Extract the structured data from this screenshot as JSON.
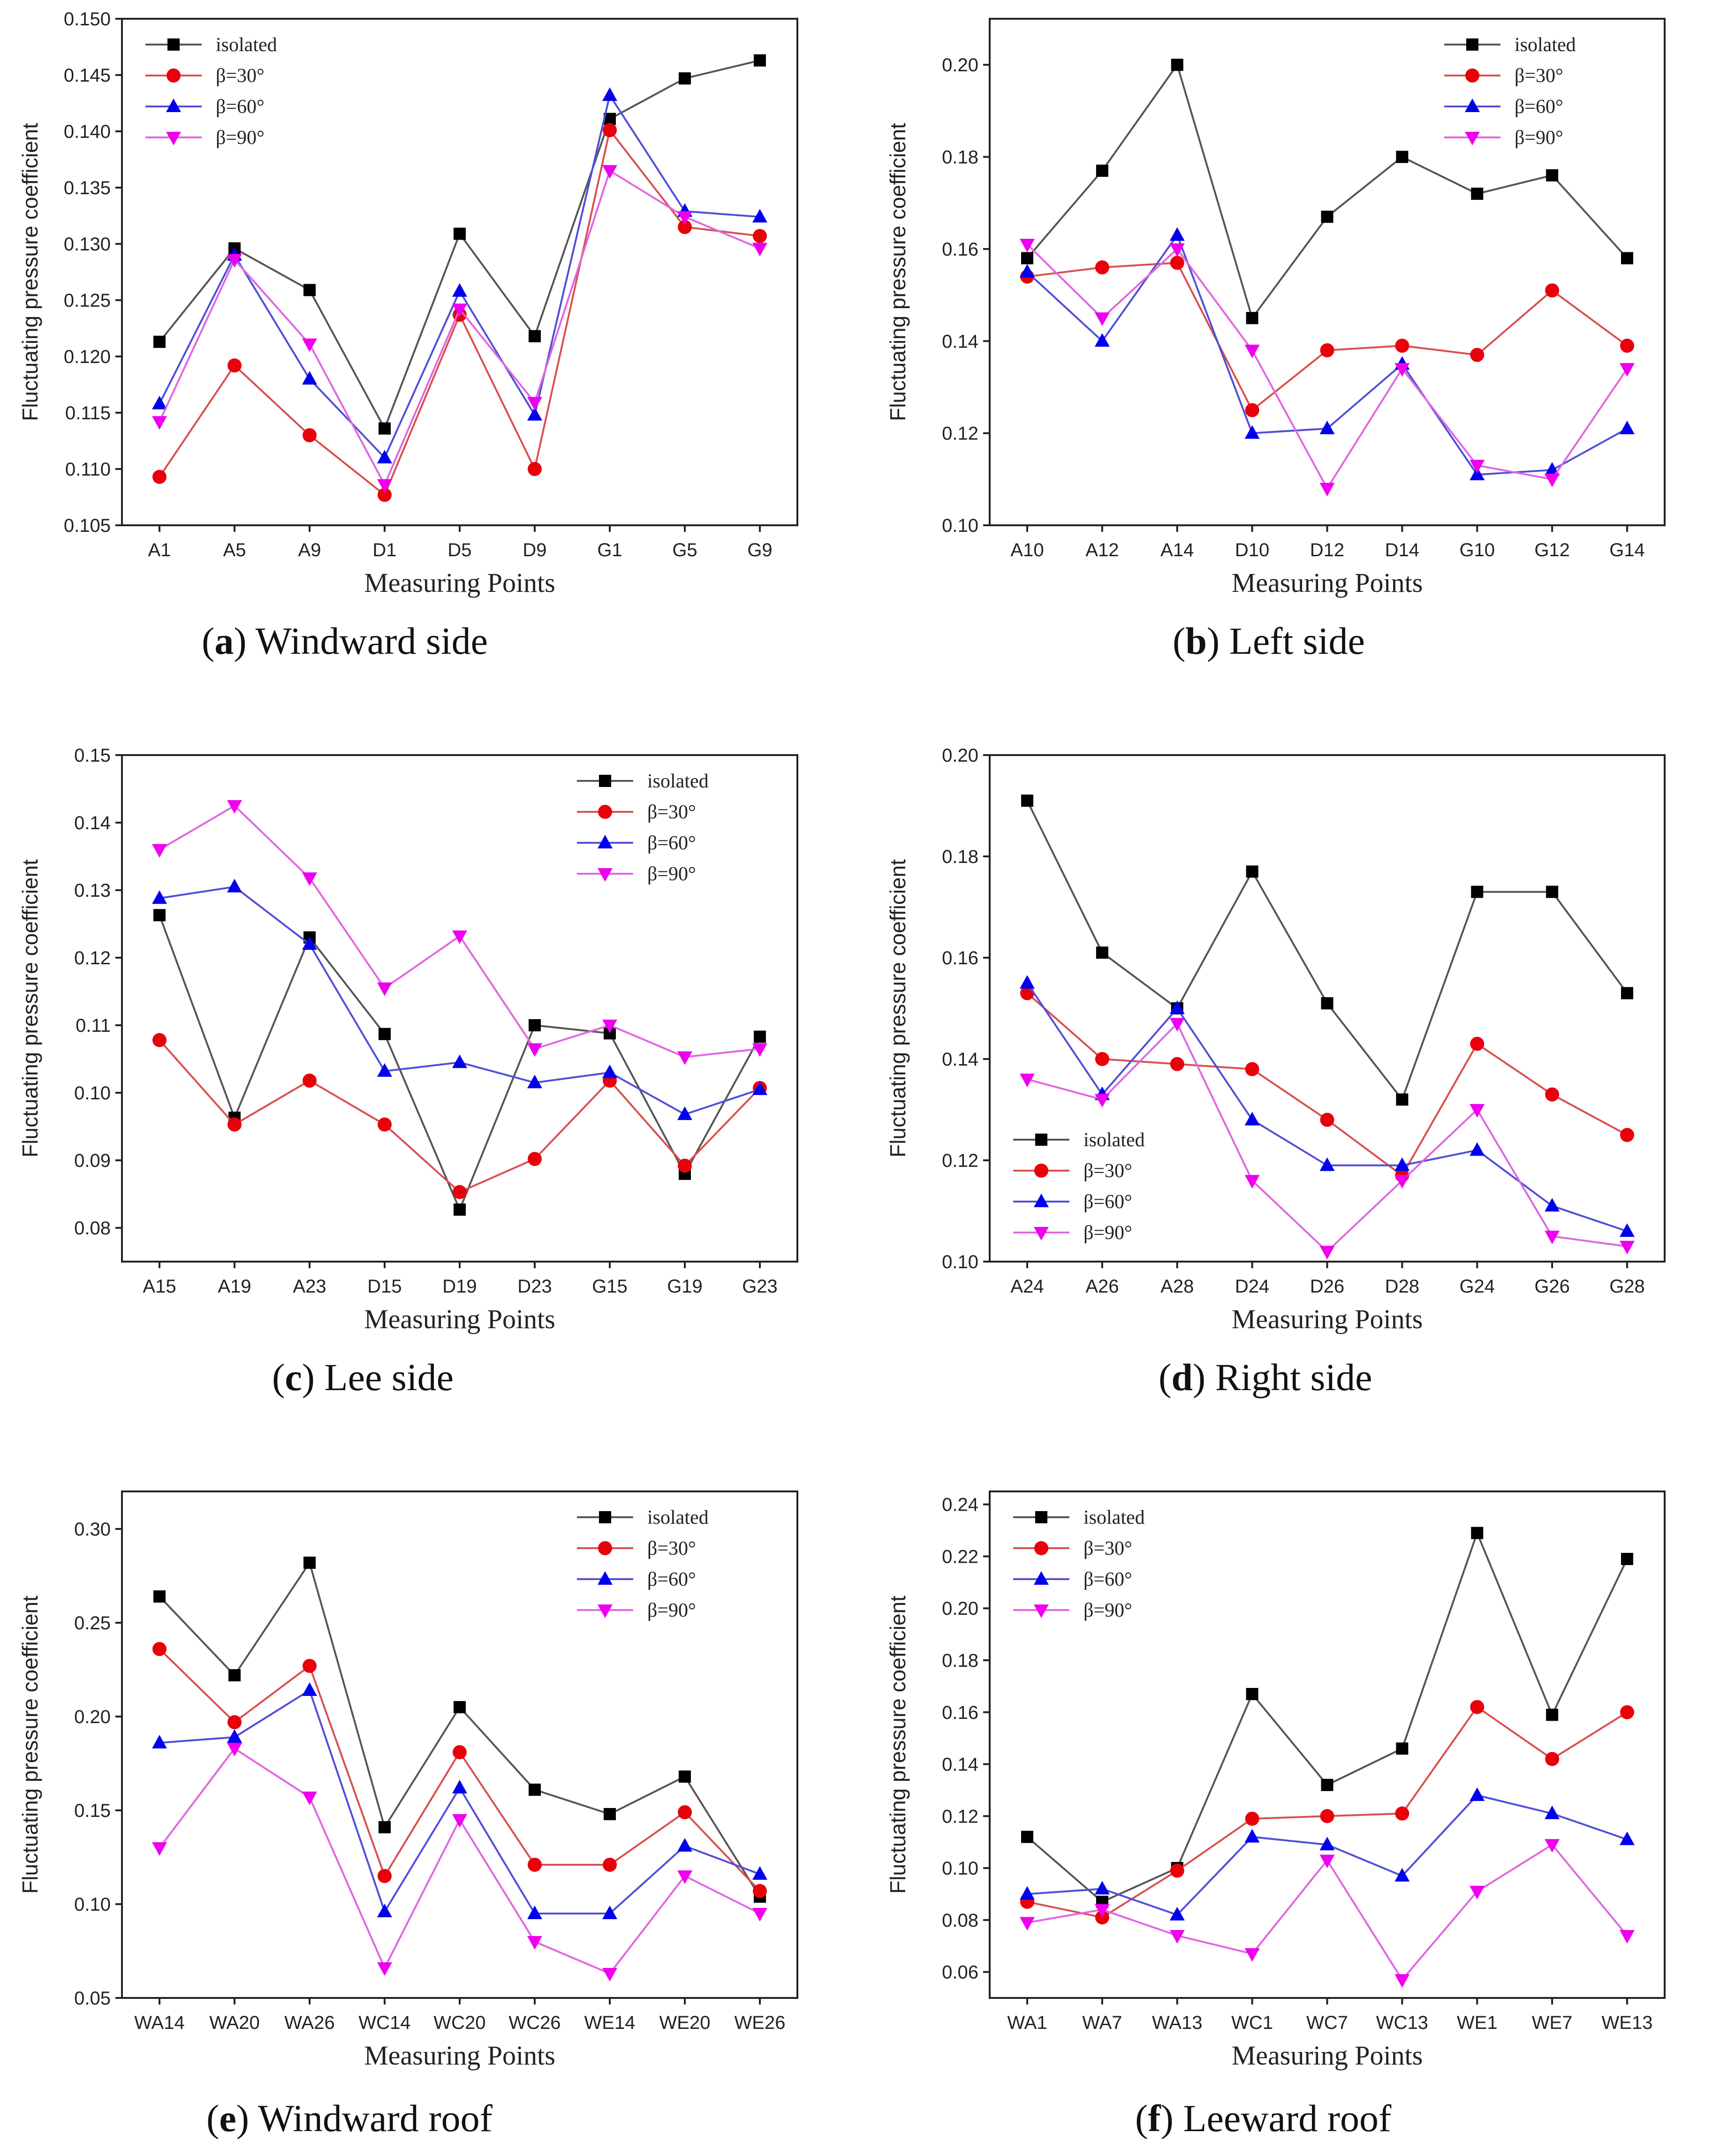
{
  "chart_data": [
    {
      "type": "line",
      "panel": "a",
      "caption_letter": "a",
      "caption_text": "Windward side",
      "xlabel": "Measuring Points",
      "ylabel": "Fluctuating pressure coefficient",
      "categories": [
        "A1",
        "A5",
        "A9",
        "D1",
        "D5",
        "D9",
        "G1",
        "G5",
        "G9"
      ],
      "ylim": [
        0.105,
        0.15
      ],
      "yticks": [
        "0.105",
        "0.110",
        "0.115",
        "0.120",
        "0.125",
        "0.130",
        "0.135",
        "0.140",
        "0.145",
        "0.150"
      ],
      "legend_position": "top-left",
      "series": [
        {
          "name": "isolated",
          "values": [
            0.1213,
            0.1296,
            0.1259,
            0.1136,
            0.1309,
            0.1218,
            0.1411,
            0.1447,
            0.1463
          ]
        },
        {
          "name": "β=30°",
          "values": [
            0.1093,
            0.1192,
            0.113,
            0.1077,
            0.1237,
            0.11,
            0.1401,
            0.1315,
            0.1307
          ]
        },
        {
          "name": "β=60°",
          "values": [
            0.1158,
            0.129,
            0.118,
            0.111,
            0.1258,
            0.1148,
            0.1432,
            0.1329,
            0.1324
          ]
        },
        {
          "name": "β=90°",
          "values": [
            0.1142,
            0.1286,
            0.1211,
            0.1086,
            0.1242,
            0.1159,
            0.1365,
            0.1324,
            0.1296
          ]
        }
      ]
    },
    {
      "type": "line",
      "panel": "b",
      "caption_letter": "b",
      "caption_text": "Left side",
      "xlabel": "Measuring Points",
      "ylabel": "Fluctuating pressure coefficient",
      "categories": [
        "A10",
        "A12",
        "A14",
        "D10",
        "D12",
        "D14",
        "G10",
        "G12",
        "G14"
      ],
      "ylim": [
        0.1,
        0.21
      ],
      "yticks": [
        "0.10",
        "0.12",
        "0.14",
        "0.16",
        "0.18",
        "0.20"
      ],
      "legend_position": "top-right",
      "series": [
        {
          "name": "isolated",
          "values": [
            0.158,
            0.177,
            0.2,
            0.145,
            0.167,
            0.18,
            0.172,
            0.176,
            0.158
          ]
        },
        {
          "name": "β=30°",
          "values": [
            0.154,
            0.156,
            0.157,
            0.125,
            0.138,
            0.139,
            0.137,
            0.151,
            0.139
          ]
        },
        {
          "name": "β=60°",
          "values": [
            0.155,
            0.14,
            0.163,
            0.12,
            0.121,
            0.135,
            0.111,
            0.112,
            0.121
          ]
        },
        {
          "name": "β=90°",
          "values": [
            0.161,
            0.145,
            0.16,
            0.138,
            0.108,
            0.134,
            0.113,
            0.11,
            0.134
          ]
        }
      ]
    },
    {
      "type": "line",
      "panel": "c",
      "caption_letter": "c",
      "caption_text": "Lee side",
      "xlabel": "Measuring Points",
      "ylabel": "Fluctuating pressure coefficient",
      "categories": [
        "A15",
        "A19",
        "A23",
        "D15",
        "D19",
        "D23",
        "G15",
        "G19",
        "G23"
      ],
      "ylim": [
        0.075,
        0.15
      ],
      "yticks": [
        "0.08",
        "0.09",
        "0.10",
        "0.11",
        "0.12",
        "0.13",
        "0.14",
        "0.15"
      ],
      "legend_position": "top-right",
      "series": [
        {
          "name": "isolated",
          "values": [
            0.1263,
            0.0963,
            0.123,
            0.1087,
            0.0827,
            0.11,
            0.1088,
            0.088,
            0.1083
          ]
        },
        {
          "name": "β=30°",
          "values": [
            0.1078,
            0.0953,
            0.1018,
            0.0953,
            0.0853,
            0.0902,
            0.1018,
            0.0892,
            0.1007
          ]
        },
        {
          "name": "β=60°",
          "values": [
            0.1288,
            0.1305,
            0.122,
            0.1032,
            0.1045,
            0.1015,
            0.103,
            0.0968,
            0.1005
          ]
        },
        {
          "name": "β=90°",
          "values": [
            0.136,
            0.1425,
            0.1318,
            0.1155,
            0.1232,
            0.1065,
            0.11,
            0.1053,
            0.1065
          ]
        }
      ]
    },
    {
      "type": "line",
      "panel": "d",
      "caption_letter": "d",
      "caption_text": "Right side",
      "xlabel": "Measuring Points",
      "ylabel": "Fluctuating pressure coefficient",
      "categories": [
        "A24",
        "A26",
        "A28",
        "D24",
        "D26",
        "D28",
        "G24",
        "G26",
        "G28"
      ],
      "ylim": [
        0.1,
        0.2
      ],
      "yticks": [
        "0.10",
        "0.12",
        "0.14",
        "0.16",
        "0.18",
        "0.20"
      ],
      "legend_position": "bottom-left",
      "series": [
        {
          "name": "isolated",
          "values": [
            0.191,
            0.161,
            0.15,
            0.177,
            0.151,
            0.132,
            0.173,
            0.173,
            0.153
          ]
        },
        {
          "name": "β=30°",
          "values": [
            0.153,
            0.14,
            0.139,
            0.138,
            0.128,
            0.117,
            0.143,
            0.133,
            0.125
          ]
        },
        {
          "name": "β=60°",
          "values": [
            0.155,
            0.133,
            0.15,
            0.128,
            0.119,
            0.119,
            0.122,
            0.111,
            0.106
          ]
        },
        {
          "name": "β=90°",
          "values": [
            0.136,
            0.132,
            0.147,
            0.116,
            0.102,
            0.116,
            0.13,
            0.105,
            0.103
          ]
        }
      ]
    },
    {
      "type": "line",
      "panel": "e",
      "caption_letter": "e",
      "caption_text": "Windward roof",
      "xlabel": "Measuring Points",
      "ylabel": "Fluctuating pressure coefficient",
      "categories": [
        "WA14",
        "WA20",
        "WA26",
        "WC14",
        "WC20",
        "WC26",
        "WE14",
        "WE20",
        "WE26"
      ],
      "ylim": [
        0.05,
        0.32
      ],
      "yticks": [
        "0.05",
        "0.10",
        "0.15",
        "0.20",
        "0.25",
        "0.30"
      ],
      "legend_position": "top-right",
      "series": [
        {
          "name": "isolated",
          "values": [
            0.264,
            0.222,
            0.282,
            0.141,
            0.205,
            0.161,
            0.148,
            0.168,
            0.104
          ]
        },
        {
          "name": "β=30°",
          "values": [
            0.236,
            0.197,
            0.227,
            0.115,
            0.181,
            0.121,
            0.121,
            0.149,
            0.107
          ]
        },
        {
          "name": "β=60°",
          "values": [
            0.186,
            0.189,
            0.214,
            0.096,
            0.162,
            0.095,
            0.095,
            0.131,
            0.116
          ]
        },
        {
          "name": "β=90°",
          "values": [
            0.13,
            0.183,
            0.157,
            0.066,
            0.145,
            0.08,
            0.063,
            0.115,
            0.095
          ]
        }
      ]
    },
    {
      "type": "line",
      "panel": "f",
      "caption_letter": "f",
      "caption_text": "Leeward roof",
      "xlabel": "Measuring Points",
      "ylabel": "Fluctuating pressure coefficient",
      "categories": [
        "WA1",
        "WA7",
        "WA13",
        "WC1",
        "WC7",
        "WC13",
        "WE1",
        "WE7",
        "WE13"
      ],
      "ylim": [
        0.05,
        0.245
      ],
      "yticks": [
        "0.06",
        "0.08",
        "0.10",
        "0.12",
        "0.14",
        "0.16",
        "0.18",
        "0.20",
        "0.22",
        "0.24"
      ],
      "legend_position": "top-left",
      "series": [
        {
          "name": "isolated",
          "values": [
            0.112,
            0.087,
            0.1,
            0.167,
            0.132,
            0.146,
            0.229,
            0.159,
            0.219
          ]
        },
        {
          "name": "β=30°",
          "values": [
            0.087,
            0.081,
            0.099,
            0.119,
            0.12,
            0.121,
            0.162,
            0.142,
            0.16
          ]
        },
        {
          "name": "β=60°",
          "values": [
            0.09,
            0.092,
            0.082,
            0.112,
            0.109,
            0.097,
            0.128,
            0.121,
            0.111
          ]
        },
        {
          "name": "β=90°",
          "values": [
            0.079,
            0.084,
            0.074,
            0.067,
            0.103,
            0.057,
            0.091,
            0.109,
            0.074
          ]
        }
      ]
    }
  ],
  "style": {
    "series_colors": [
      "#000000",
      "#e8000b",
      "#0000ee",
      "#ee00ee"
    ],
    "line_colors": [
      "#555555",
      "#d85050",
      "#4f4fd8",
      "#e066e0"
    ],
    "marker_shapes": [
      "square",
      "circle",
      "triangle-up",
      "triangle-down"
    ]
  }
}
